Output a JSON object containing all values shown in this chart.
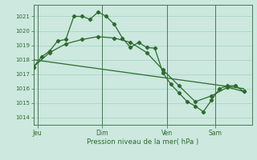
{
  "title": "Pression niveau de la mer( hPa )",
  "bg_color": "#cce8df",
  "plot_bg_color": "#cce8df",
  "grid_color": "#99ccbb",
  "line_color": "#2d6b2d",
  "ylim": [
    1013.5,
    1021.8
  ],
  "yticks": [
    1014,
    1015,
    1016,
    1017,
    1018,
    1019,
    1020,
    1021
  ],
  "day_labels": [
    "Jeu",
    "Dim",
    "Ven",
    "Sam"
  ],
  "day_positions": [
    0.5,
    8.5,
    16.5,
    22.5
  ],
  "xlim": [
    0,
    27
  ],
  "series1_x": [
    0,
    1,
    2,
    3,
    4,
    5,
    6,
    7,
    8,
    9,
    10,
    11,
    12,
    13,
    14,
    15,
    16,
    17,
    18,
    19,
    20,
    21,
    22,
    23,
    24,
    25,
    26
  ],
  "series1_y": [
    1017.5,
    1018.2,
    1018.6,
    1019.3,
    1019.4,
    1021.0,
    1021.0,
    1020.8,
    1021.3,
    1021.0,
    1020.45,
    1019.5,
    1018.85,
    1019.2,
    1018.85,
    1018.8,
    1017.1,
    1016.3,
    1015.7,
    1015.1,
    1014.8,
    1014.4,
    1015.2,
    1016.0,
    1016.2,
    1016.2,
    1015.8
  ],
  "series2_x": [
    0,
    26
  ],
  "series2_y": [
    1018.0,
    1016.0
  ],
  "series3_x": [
    0,
    2,
    4,
    6,
    8,
    10,
    12,
    14,
    16,
    18,
    20,
    22,
    24,
    26
  ],
  "series3_y": [
    1017.5,
    1018.5,
    1019.1,
    1019.4,
    1019.6,
    1019.5,
    1019.2,
    1018.5,
    1017.3,
    1016.2,
    1015.1,
    1015.5,
    1016.1,
    1015.8
  ]
}
